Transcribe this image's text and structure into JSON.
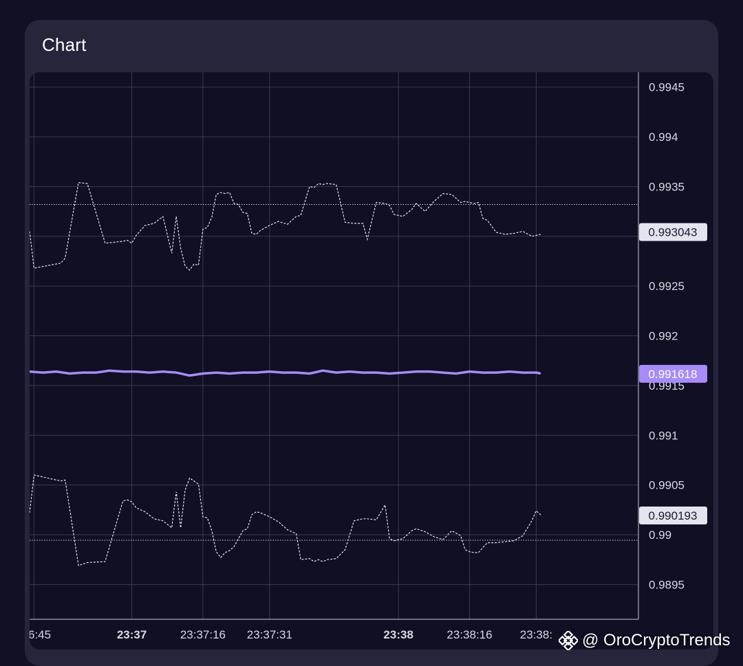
{
  "header": {
    "title": "Chart"
  },
  "watermark": {
    "text": "@ OroCryptoTrends",
    "icon": "binance-logo-icon"
  },
  "colors": {
    "background": "#111025",
    "card": "#26253c",
    "plot": "#100f23",
    "grid": "#3a3a52",
    "mid_line": "#a78bfa",
    "band_line": "#e5e5f0",
    "mid_badge": "#a78bfa",
    "band_badge": "#e4e4ef"
  },
  "chart_data": {
    "type": "line",
    "ylim": [
      0.98915,
      0.99465
    ],
    "y_ticks": [
      "0.9945",
      "0.994",
      "0.9935",
      "0.993",
      "0.9925",
      "0.992",
      "0.9915",
      "0.991",
      "0.9905",
      "0.99",
      "0.9895"
    ],
    "y_tick_values": [
      0.9945,
      0.994,
      0.9935,
      0.993,
      0.9925,
      0.992,
      0.9915,
      0.991,
      0.9905,
      0.99,
      0.9895
    ],
    "x_range_seconds": [
      -23,
      114
    ],
    "x_ticks": [
      {
        "label": "6:45",
        "t": -22,
        "bold": false
      },
      {
        "label": "23:37",
        "t": 0,
        "bold": true
      },
      {
        "label": "23:37:16",
        "t": 16,
        "bold": false
      },
      {
        "label": "23:37:31",
        "t": 31,
        "bold": false
      },
      {
        "label": "23:38",
        "t": 60,
        "bold": true
      },
      {
        "label": "23:38:16",
        "t": 76,
        "bold": false
      },
      {
        "label": "23:38:",
        "t": 91,
        "bold": false
      }
    ],
    "price_labels": [
      {
        "value": 0.993043,
        "label": "0.993043",
        "kind": "band"
      },
      {
        "value": 0.991618,
        "label": "0.991618",
        "kind": "mid"
      },
      {
        "value": 0.990193,
        "label": "0.990193",
        "kind": "band"
      }
    ],
    "reference_lines": [
      0.99332,
      0.989945
    ],
    "series": [
      {
        "kind": "band",
        "style": "dashed",
        "t": [
          -23,
          -22,
          -16,
          -15,
          -12,
          -10,
          -6,
          -2,
          -1,
          0,
          1,
          3,
          5,
          7,
          9,
          10,
          11,
          12,
          13,
          14,
          15,
          16,
          17,
          18,
          19,
          20,
          21,
          22,
          23,
          24,
          25,
          26,
          27,
          28,
          29,
          31,
          33,
          35,
          37,
          38,
          40,
          41,
          42,
          43,
          44,
          46,
          48,
          50,
          52,
          53,
          55,
          57,
          58,
          59,
          61,
          63,
          64,
          66,
          68,
          70,
          72,
          74,
          75,
          76,
          77,
          78,
          79,
          80,
          82,
          84,
          86,
          88,
          90,
          91,
          92
        ],
        "y": [
          0.99305,
          0.99268,
          0.99273,
          0.99278,
          0.99354,
          0.99353,
          0.99293,
          0.99295,
          0.99296,
          0.99293,
          0.99301,
          0.99311,
          0.99313,
          0.9932,
          0.99283,
          0.9932,
          0.99288,
          0.9927,
          0.99266,
          0.99272,
          0.99271,
          0.99307,
          0.99309,
          0.99319,
          0.99342,
          0.99344,
          0.99343,
          0.99344,
          0.99333,
          0.99332,
          0.99324,
          0.99323,
          0.99303,
          0.99302,
          0.99306,
          0.99311,
          0.99315,
          0.99312,
          0.9932,
          0.99321,
          0.9935,
          0.99349,
          0.99353,
          0.99352,
          0.99353,
          0.99352,
          0.99314,
          0.99313,
          0.99313,
          0.99297,
          0.99334,
          0.99333,
          0.99331,
          0.99322,
          0.9932,
          0.99327,
          0.99333,
          0.99325,
          0.99335,
          0.99343,
          0.99342,
          0.99334,
          0.99335,
          0.99334,
          0.99333,
          0.99334,
          0.99318,
          0.99316,
          0.99304,
          0.99302,
          0.99303,
          0.99305,
          0.993,
          0.99301,
          0.99302
        ]
      },
      {
        "kind": "mid",
        "style": "solid",
        "t": [
          -23,
          -20,
          -17,
          -14,
          -11,
          -8,
          -5,
          -2,
          1,
          4,
          7,
          10,
          13,
          16,
          19,
          22,
          25,
          28,
          31,
          34,
          37,
          40,
          43,
          46,
          49,
          52,
          55,
          58,
          61,
          64,
          67,
          70,
          73,
          76,
          79,
          82,
          85,
          88,
          91,
          92
        ],
        "y": [
          0.99164,
          0.99163,
          0.99164,
          0.99162,
          0.99163,
          0.99163,
          0.99165,
          0.99164,
          0.99164,
          0.99163,
          0.99164,
          0.99163,
          0.9916,
          0.99162,
          0.99163,
          0.99162,
          0.99163,
          0.99163,
          0.99164,
          0.99163,
          0.99163,
          0.99162,
          0.99165,
          0.99163,
          0.99164,
          0.99163,
          0.99163,
          0.99162,
          0.99163,
          0.99164,
          0.99164,
          0.99163,
          0.99162,
          0.99164,
          0.99163,
          0.99163,
          0.99164,
          0.99163,
          0.99163,
          0.99162
        ]
      },
      {
        "kind": "band",
        "style": "dashed",
        "t": [
          -23,
          -22,
          -16,
          -15,
          -12,
          -10,
          -6,
          -2,
          -1,
          0,
          1,
          3,
          5,
          7,
          9,
          10,
          11,
          12,
          13,
          14,
          15,
          16,
          17,
          18,
          19,
          20,
          21,
          22,
          23,
          24,
          25,
          26,
          27,
          28,
          29,
          31,
          33,
          35,
          37,
          38,
          40,
          41,
          42,
          43,
          44,
          46,
          48,
          50,
          52,
          53,
          55,
          57,
          58,
          59,
          61,
          63,
          64,
          66,
          68,
          70,
          72,
          74,
          75,
          76,
          77,
          78,
          79,
          80,
          82,
          84,
          86,
          88,
          90,
          91,
          92
        ],
        "y": [
          0.99022,
          0.9906,
          0.99054,
          0.99055,
          0.98969,
          0.98972,
          0.98973,
          0.99034,
          0.99035,
          0.99033,
          0.99027,
          0.99023,
          0.99016,
          0.99014,
          0.99007,
          0.99043,
          0.99007,
          0.99045,
          0.99057,
          0.99054,
          0.99051,
          0.99018,
          0.99017,
          0.99004,
          0.98983,
          0.98977,
          0.98982,
          0.98984,
          0.98988,
          0.98996,
          0.99004,
          0.99006,
          0.9902,
          0.99023,
          0.99022,
          0.99018,
          0.99013,
          0.99005,
          0.99001,
          0.98975,
          0.98976,
          0.98973,
          0.98975,
          0.98973,
          0.98975,
          0.98976,
          0.98985,
          0.99014,
          0.99016,
          0.99016,
          0.99015,
          0.9903,
          0.98996,
          0.98994,
          0.98996,
          0.99004,
          0.99006,
          0.99003,
          0.98998,
          0.98995,
          0.99004,
          0.98999,
          0.98985,
          0.98983,
          0.98982,
          0.98982,
          0.98987,
          0.98992,
          0.98992,
          0.98993,
          0.98994,
          0.98999,
          0.99014,
          0.99024,
          0.9902
        ]
      }
    ]
  }
}
